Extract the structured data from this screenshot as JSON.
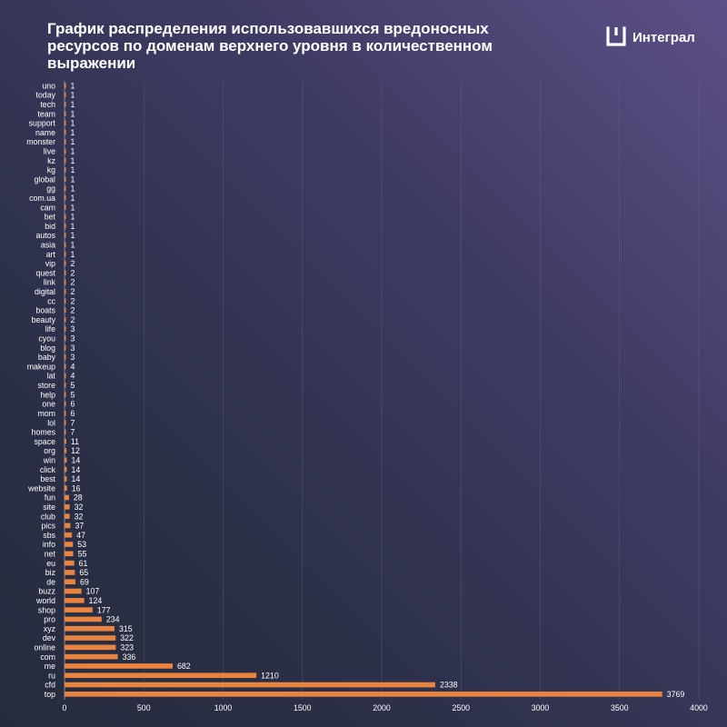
{
  "title": "График распределения использовавшихся вредоносных ресурсов по доменам верхнего уровня в количественном выражении",
  "brand": {
    "name": "Интеграл",
    "icon": "integral-bracket-logo-icon"
  },
  "colors": {
    "bar": "#e8843f",
    "text": "#ffffff",
    "grid": "#6b6f86"
  },
  "chart_data": {
    "type": "bar",
    "orientation": "horizontal",
    "title": "График распределения использовавшихся вредоносных ресурсов по доменам верхнего уровня в количественном выражении",
    "xlabel": "",
    "ylabel": "",
    "xlim": [
      0,
      4000
    ],
    "xticks": [
      0,
      500,
      1000,
      1500,
      2000,
      2500,
      3000,
      3500,
      4000
    ],
    "grid": "vertical",
    "data_labels": true,
    "categories": [
      "uno",
      "today",
      "tech",
      "team",
      "support",
      "name",
      "monster",
      "live",
      "kz",
      "kg",
      "global",
      "gg",
      "com.ua",
      "cam",
      "bet",
      "bid",
      "autos",
      "asia",
      "art",
      "vip",
      "quest",
      "link",
      "digital",
      "cc",
      "boats",
      "beauty",
      "life",
      "cyou",
      "blog",
      "baby",
      "makeup",
      "lat",
      "store",
      "help",
      "one",
      "mom",
      "lol",
      "homes",
      "space",
      "org",
      "win",
      "click",
      "best",
      "website",
      "fun",
      "site",
      "club",
      "pics",
      "sbs",
      "info",
      "net",
      "eu",
      "biz",
      "de",
      "buzz",
      "world",
      "shop",
      "pro",
      "xyz",
      "dev",
      "online",
      "com",
      "me",
      "ru",
      "cfd",
      "top"
    ],
    "values": [
      1,
      1,
      1,
      1,
      1,
      1,
      1,
      1,
      1,
      1,
      1,
      1,
      1,
      1,
      1,
      1,
      1,
      1,
      1,
      2,
      2,
      2,
      2,
      2,
      2,
      2,
      3,
      3,
      3,
      3,
      4,
      4,
      5,
      5,
      6,
      6,
      7,
      7,
      11,
      12,
      14,
      14,
      14,
      16,
      28,
      32,
      32,
      37,
      47,
      53,
      55,
      61,
      65,
      69,
      107,
      124,
      177,
      234,
      315,
      322,
      323,
      336,
      682,
      1210,
      2338,
      3769
    ]
  }
}
